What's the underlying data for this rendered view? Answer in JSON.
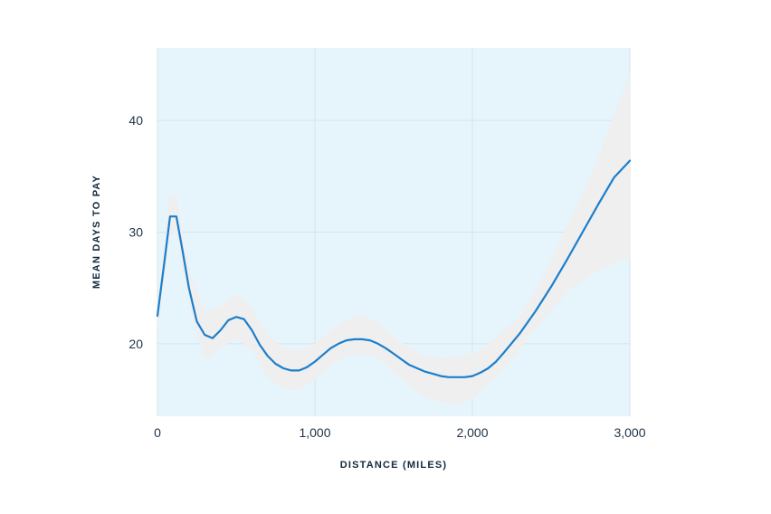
{
  "chart_data": {
    "type": "line",
    "title": "",
    "xlabel": "DISTANCE (MILES)",
    "ylabel": "MEAN DAYS TO PAY",
    "xlim": [
      0,
      3000
    ],
    "ylim": [
      13.5,
      46.5
    ],
    "x_ticks": [
      0,
      1000,
      2000,
      3000
    ],
    "x_tick_labels": [
      "0",
      "1,000",
      "2,000",
      "3,000"
    ],
    "y_ticks": [
      20,
      30,
      40
    ],
    "y_tick_labels": [
      "20",
      "30",
      "40"
    ],
    "grid": true,
    "legend": "none",
    "colors": {
      "plot_background": "#e6f4fb",
      "grid": "#d5e3ec",
      "line": "#1b7fcc",
      "band": "#efefef"
    },
    "series": [
      {
        "type": "line",
        "x": [
          0,
          50,
          80,
          120,
          160,
          200,
          250,
          300,
          350,
          400,
          450,
          500,
          550,
          600,
          650,
          700,
          750,
          800,
          850,
          900,
          950,
          1000,
          1050,
          1100,
          1150,
          1200,
          1250,
          1300,
          1350,
          1400,
          1450,
          1500,
          1550,
          1600,
          1650,
          1700,
          1750,
          1800,
          1850,
          1900,
          1950,
          2000,
          2050,
          2100,
          2150,
          2200,
          2300,
          2400,
          2500,
          2600,
          2700,
          2800,
          2900,
          3000
        ],
        "y": [
          22.5,
          28.0,
          31.4,
          31.4,
          28.3,
          25.0,
          22.0,
          20.8,
          20.5,
          21.2,
          22.1,
          22.4,
          22.2,
          21.2,
          19.9,
          18.9,
          18.2,
          17.8,
          17.6,
          17.6,
          17.9,
          18.4,
          19.0,
          19.6,
          20.0,
          20.3,
          20.4,
          20.4,
          20.3,
          20.0,
          19.6,
          19.1,
          18.6,
          18.1,
          17.8,
          17.5,
          17.3,
          17.1,
          17.0,
          17.0,
          17.0,
          17.1,
          17.4,
          17.8,
          18.4,
          19.2,
          20.9,
          22.9,
          25.1,
          27.5,
          30.0,
          32.5,
          34.9,
          36.4
        ]
      },
      {
        "type": "band",
        "x": [
          0,
          80,
          120,
          200,
          300,
          400,
          500,
          600,
          700,
          800,
          900,
          1000,
          1100,
          1200,
          1300,
          1400,
          1500,
          1600,
          1700,
          1800,
          1900,
          2000,
          2100,
          2200,
          2300,
          2400,
          2500,
          2600,
          2700,
          2800,
          2900,
          3000
        ],
        "lower": [
          21.0,
          29.8,
          29.8,
          23.5,
          18.6,
          19.6,
          20.5,
          19.4,
          17.0,
          16.0,
          15.8,
          16.8,
          18.0,
          18.9,
          19.1,
          18.7,
          17.5,
          16.2,
          15.2,
          14.8,
          14.6,
          15.0,
          16.3,
          17.8,
          19.5,
          21.3,
          23.0,
          24.6,
          25.7,
          26.5,
          27.2,
          27.7
        ],
        "upper": [
          24.0,
          33.3,
          33.3,
          26.5,
          22.9,
          23.3,
          24.5,
          23.2,
          20.8,
          19.6,
          19.4,
          20.0,
          21.2,
          22.2,
          22.5,
          22.0,
          20.6,
          19.6,
          18.9,
          18.7,
          18.8,
          19.2,
          19.9,
          21.2,
          22.4,
          24.7,
          27.5,
          30.6,
          33.4,
          36.8,
          40.5,
          44.2
        ]
      }
    ]
  }
}
